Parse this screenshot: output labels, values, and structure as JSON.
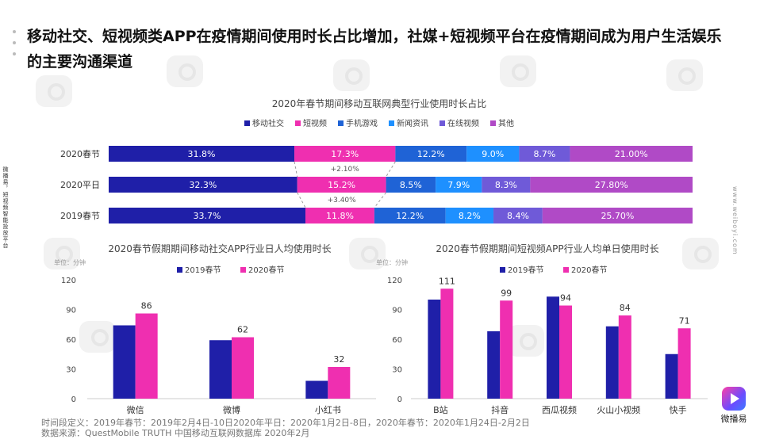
{
  "page": {
    "title": "移动社交、短视频类APP在疫情期间使用时长占比增加，社媒+短视频平台在疫情期间成为用户生活娱乐的主要沟通渠道",
    "side_left": "微播易，短视频智能投放平台",
    "side_right": "www.weiboyi.com",
    "brand": "微播易",
    "footer_line1": "时间段定义：2019年春节：2019年2月4日-10日2020年平日：2020年1月2日-8日，2020年春节：2020年1月24日-2月2日",
    "footer_line2": "数据来源：QuestMobile TRUTH 中国移动互联网数据库 2020年2月"
  },
  "colors": {
    "移动社交": "#1f1fa8",
    "短视频": "#ef2fb0",
    "手机游戏": "#1f63d6",
    "新闻资讯": "#1e90ff",
    "在线视频": "#6f5ad8",
    "其他": "#b04ac6",
    "year2019": "#1f1fa8",
    "year2020": "#ef2fb0"
  },
  "chart_data": [
    {
      "type": "bar",
      "orientation": "horizontal-stacked-100",
      "title": "2020年春节期间移动互联网典型行业使用时长占比",
      "categories": [
        "2020春节",
        "2020平日",
        "2019春节"
      ],
      "series": [
        {
          "name": "移动社交",
          "values": [
            31.8,
            32.3,
            33.7
          ],
          "labels": [
            "31.8%",
            "32.3%",
            "33.7%"
          ]
        },
        {
          "name": "短视频",
          "values": [
            17.3,
            15.2,
            11.8
          ],
          "labels": [
            "17.3%",
            "15.2%",
            "11.8%"
          ]
        },
        {
          "name": "手机游戏",
          "values": [
            12.2,
            8.5,
            12.2
          ],
          "labels": [
            "12.2%",
            "8.5%",
            "12.2%"
          ]
        },
        {
          "name": "新闻资讯",
          "values": [
            9.0,
            7.9,
            8.2
          ],
          "labels": [
            "9.0%",
            "7.9%",
            "8.2%"
          ]
        },
        {
          "name": "在线视频",
          "values": [
            8.7,
            8.3,
            8.4
          ],
          "labels": [
            "8.7%",
            "8.3%",
            "8.4%"
          ]
        },
        {
          "name": "其他",
          "values": [
            21.0,
            27.8,
            25.7
          ],
          "labels": [
            "21.00%",
            "27.80%",
            "25.70%"
          ]
        }
      ],
      "annotations": [
        "+2.10%",
        "+3.40%"
      ],
      "legend": "top-center"
    },
    {
      "type": "bar",
      "title": "2020春节假期期间移动社交APP行业日人均使用时长",
      "unit_label": "单位：分钟",
      "categories": [
        "微信",
        "微博",
        "小红书"
      ],
      "ylim": [
        0,
        120
      ],
      "yticks": [
        0,
        30,
        60,
        90,
        120
      ],
      "series": [
        {
          "name": "2019春节",
          "values": [
            74,
            59,
            18
          ]
        },
        {
          "name": "2020春节",
          "values": [
            86,
            62,
            32
          ]
        }
      ],
      "data_labels": {
        "2020春节": [
          "86",
          "62",
          "32"
        ]
      },
      "legend": "top-center"
    },
    {
      "type": "bar",
      "title": "2020春节假期期间短视频APP行业人均单日使用时长",
      "unit_label": "单位：分钟",
      "categories": [
        "B站",
        "抖音",
        "西瓜视频",
        "火山小视频",
        "快手"
      ],
      "ylim": [
        0,
        120
      ],
      "yticks": [
        0,
        30,
        60,
        90,
        120
      ],
      "series": [
        {
          "name": "2019春节",
          "values": [
            100,
            68,
            103,
            73,
            45
          ]
        },
        {
          "name": "2020春节",
          "values": [
            111,
            99,
            94,
            84,
            71
          ]
        }
      ],
      "data_labels": {
        "2020春节": [
          "111",
          "99",
          "94",
          "84",
          "71"
        ]
      },
      "legend": "top-center"
    }
  ]
}
